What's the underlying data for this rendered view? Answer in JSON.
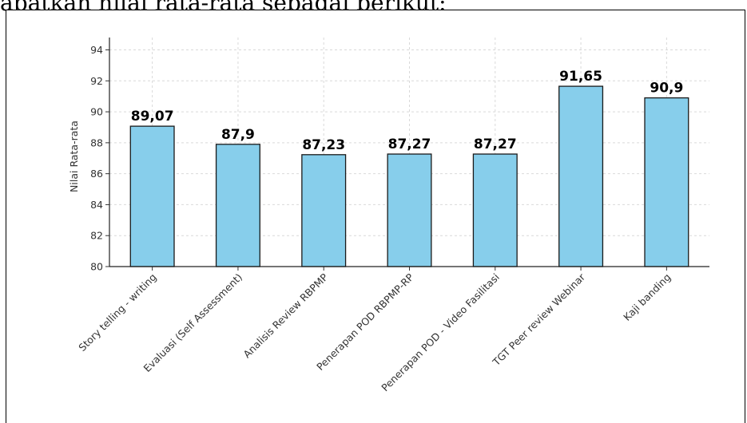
{
  "document": {
    "text_above": "apatkan nilai rata-rata sebagai berikut:"
  },
  "chart_data": {
    "type": "bar",
    "title": "",
    "xlabel": "",
    "ylabel": "Nilai Rata-rata",
    "ylim": [
      80,
      94.8
    ],
    "yticks": [
      80,
      82,
      84,
      86,
      88,
      90,
      92,
      94
    ],
    "grid": true,
    "categories": [
      "Story telling - writing",
      "Evaluasi (Self Assessment)",
      "Analisis Review RBPMP",
      "Penerapan POD RBPMP-RP",
      "Penerapan POD - Video Fasilitasi",
      "TGT Peer review Webinar",
      "Kaji banding"
    ],
    "values": [
      89.07,
      87.9,
      87.23,
      87.27,
      87.27,
      91.65,
      90.9
    ],
    "data_labels": [
      "89,07",
      "87,9",
      "87,23",
      "87,27",
      "87,27",
      "91,65",
      "90,9"
    ],
    "bar_color": "#87CEEB",
    "edge_color": "#1a1a1a"
  }
}
